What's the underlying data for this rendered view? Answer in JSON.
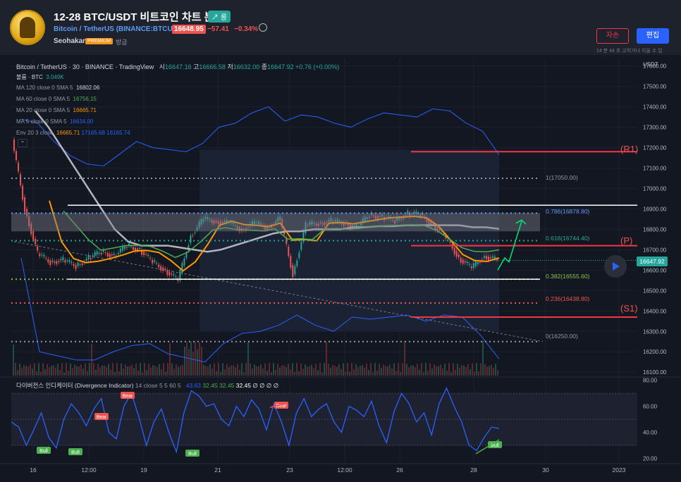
{
  "header": {
    "title": "12-28 BTC/USDT 비트코인 차트 분석",
    "idea_badge": "↗ 롱",
    "symbol": "Bitcoin / TetherUS (BINANCE:BTCUSDT)",
    "price": "16648.95",
    "change": "−57.41",
    "change_pct": "−0.34%",
    "author": "Seohakant",
    "premium_badge": "PREMIUM",
    "time": "방금",
    "boost_button": "자손",
    "edit_button": "편집",
    "note": "14 분 44 초 고치거나 지울 수 있"
  },
  "legend": {
    "main": "Bitcoin / TetherUS · 30 · BINANCE · TradingView",
    "o_label": "시",
    "o": "16647.16",
    "h_label": "고",
    "h": "16666.58",
    "l_label": "저",
    "l": "16632.00",
    "c_label": "종",
    "c": "16647.92",
    "chg": "+0.76 (+0.00%)",
    "volume_label": "볼륨 · BTC",
    "volume": "3.049K",
    "ma120": "MA 120 close 0 SMA 5",
    "ma120_v": "16802.06",
    "ma60": "MA 60 close 0 SMA 5",
    "ma60_v": "16756.15",
    "ma20": "MA 20 close 0 SMA 5",
    "ma20_v": "16665.71",
    "ma5": "MA 5 close 0 SMA 5",
    "ma5_v": "16634.00",
    "env": "Env 20 3 close",
    "env_v1": "16665.71",
    "env_v2": "17165.68",
    "env_v3": "16165.74",
    "collapse": "⌃"
  },
  "axis": {
    "currency": "USDT",
    "current_price": "16647.92"
  },
  "fib_labels": [
    "1(17050.00)",
    "0.786(16878.80)",
    "0.618(16744.40)",
    "0.382(16555.60)",
    "0.236(16438.80)",
    "0(16250.00)"
  ],
  "level_labels": {
    "r1": "(R1)",
    "p": "(P)",
    "s1": "(S1)"
  },
  "osc": {
    "title": "다이버전스 인디케이터 (Divergence Indicator)",
    "params": "14 close 5 5 60 5",
    "v1": "43.63",
    "v2": "32.45",
    "v3": "32.45",
    "v4": "32.45",
    "nan": "∅ ∅ ∅ ∅",
    "bull": "Bull",
    "bear": "Bear"
  },
  "colors": {
    "bg": "#131722",
    "up": "#26a69a",
    "down": "#ef5350",
    "accent": "#2962ff",
    "fib": "#d1d4dc"
  },
  "chart_data": [
    {
      "type": "line",
      "title": "Bitcoin / TetherUS · 30 · BINANCE",
      "x_ticks": [
        "16",
        "12:00",
        "19",
        "21",
        "23",
        "12:00",
        "26",
        "28",
        "30",
        "2023"
      ],
      "y_ticks": [
        17600,
        17500,
        17400,
        17300,
        17200,
        17100,
        17000,
        16900,
        16800,
        16700,
        16600,
        16500,
        16400,
        16300,
        16200,
        16100
      ],
      "ylim": [
        16080,
        17640
      ],
      "series": [
        {
          "name": "Price",
          "values": [
            17240,
            16900,
            16680,
            16640,
            16650,
            16620,
            16660,
            16690,
            16670,
            16720,
            16700,
            16640,
            16600,
            16550,
            16770,
            16850,
            16840,
            16830,
            16800,
            16830,
            16810,
            16850,
            16580,
            16820,
            16830,
            16840,
            16830,
            16810,
            16870,
            16860,
            16840,
            16880,
            16870,
            16820,
            16760,
            16660,
            16610,
            16670,
            16648
          ]
        },
        {
          "name": "MA 120",
          "values": [
            17380,
            17300,
            17200,
            17100,
            17000,
            16900,
            16800,
            16740,
            16720,
            16720,
            16720,
            16710,
            16700,
            16690,
            16700,
            16720,
            16740,
            16760,
            16780,
            16790,
            16790,
            16800,
            16800,
            16800,
            16810,
            16810,
            16815,
            16815,
            16820,
            16820,
            16820,
            16820,
            16820,
            16810,
            16810,
            16802
          ]
        },
        {
          "name": "Env upper",
          "values": [
            17340,
            17320,
            17230,
            17160,
            17120,
            17110,
            17170,
            17230,
            17200,
            17190,
            17180,
            17220,
            17300,
            17320,
            17370,
            17400,
            17330,
            17360,
            17350,
            17320,
            17300,
            17340,
            17370,
            17360,
            17350,
            17390,
            17380,
            17320,
            17280,
            17165
          ]
        },
        {
          "name": "Env lower",
          "values": [
            16660,
            16200,
            16180,
            16160,
            16160,
            16200,
            16230,
            16240,
            16190,
            16170,
            16150,
            16240,
            16290,
            16300,
            16330,
            16380,
            16330,
            16300,
            16370,
            16360,
            16370,
            16380,
            16350,
            16380,
            16370,
            16280,
            16165
          ]
        }
      ],
      "levels": {
        "r1": 17180,
        "p": 16720,
        "s1": 16370
      },
      "fib_levels": {
        "1": 17050.0,
        "0.786": 16878.8,
        "0.618": 16744.4,
        "0.382": 16555.6,
        "0.236": 16438.8,
        "0": 16250.0
      },
      "current_price": 16647.92
    },
    {
      "type": "line",
      "title": "다이버전스 인디케이터 (Divergence Indicator)",
      "y_ticks": [
        80.0,
        60.0,
        40.0,
        20.0
      ],
      "ylim": [
        17,
        82
      ],
      "series": [
        {
          "name": "RSI",
          "values": [
            48,
            44,
            30,
            42,
            55,
            36,
            28,
            50,
            62,
            55,
            45,
            58,
            66,
            40,
            35,
            60,
            70,
            52,
            30,
            48,
            58,
            40,
            25,
            55,
            72,
            68,
            60,
            62,
            50,
            45,
            60,
            52,
            65,
            58,
            42,
            62,
            48,
            30,
            55,
            66,
            52,
            58,
            62,
            48,
            40,
            60,
            57,
            52,
            64,
            45,
            32,
            56,
            70,
            62,
            48,
            55,
            38,
            62,
            74,
            60,
            48,
            30,
            26,
            36,
            44,
            43
          ]
        }
      ]
    }
  ]
}
